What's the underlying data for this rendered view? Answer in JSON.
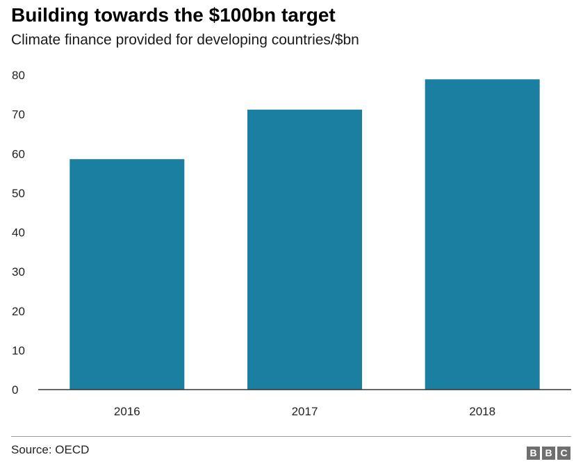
{
  "chart_data": {
    "type": "bar",
    "title": "Building towards the $100bn target",
    "subtitle": "Climate finance provided for developing countries/$bn",
    "categories": [
      "2016",
      "2017",
      "2018"
    ],
    "values": [
      58.6,
      71.2,
      78.9
    ],
    "yticks": [
      "0",
      "10",
      "20",
      "30",
      "40",
      "50",
      "60",
      "70",
      "80"
    ],
    "ylim": [
      0,
      80
    ],
    "xlabel": "",
    "ylabel": "",
    "grid": false,
    "bar_color": "#1a7fa1"
  },
  "footer": {
    "source": "Source: OECD",
    "logo_letters": [
      "B",
      "B",
      "C"
    ]
  }
}
